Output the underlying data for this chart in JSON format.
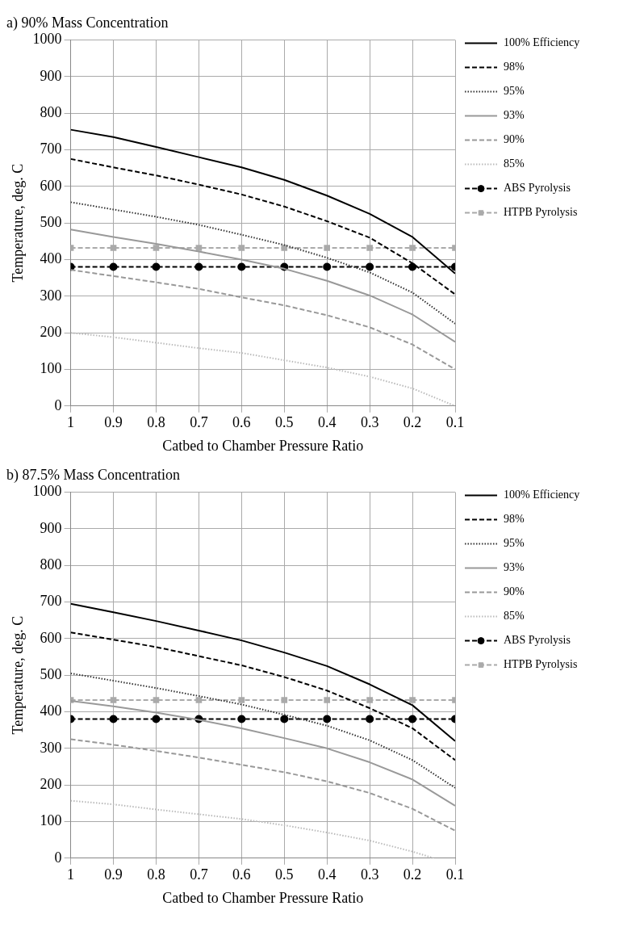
{
  "chart_data": [
    {
      "type": "line",
      "title": "a) 90% Mass Concentration",
      "xlabel": "Catbed to Chamber Pressure Ratio",
      "ylabel": "Temperature, deg. C",
      "x": [
        1,
        0.9,
        0.8,
        0.7,
        0.6,
        0.5,
        0.4,
        0.3,
        0.2,
        0.1
      ],
      "series": [
        {
          "name": "100% Efficiency",
          "color": "#000000",
          "line_style": "solid",
          "marker": "none",
          "values": [
            755,
            735,
            708,
            680,
            652,
            618,
            575,
            525,
            462,
            362
          ]
        },
        {
          "name": "98%",
          "color": "#000000",
          "line_style": "dashed",
          "marker": "none",
          "values": [
            675,
            652,
            630,
            605,
            578,
            545,
            505,
            460,
            390,
            305
          ]
        },
        {
          "name": "95%",
          "color": "#333333",
          "line_style": "dotted",
          "marker": "none",
          "values": [
            557,
            537,
            517,
            495,
            468,
            440,
            405,
            365,
            310,
            225
          ]
        },
        {
          "name": "93%",
          "color": "#999999",
          "line_style": "solid",
          "marker": "none",
          "values": [
            482,
            462,
            443,
            422,
            400,
            375,
            342,
            302,
            250,
            175
          ]
        },
        {
          "name": "90%",
          "color": "#999999",
          "line_style": "dashed",
          "marker": "none",
          "values": [
            372,
            355,
            338,
            320,
            297,
            275,
            248,
            215,
            168,
            100
          ]
        },
        {
          "name": "85%",
          "color": "#bbbbbb",
          "line_style": "dotted",
          "marker": "none",
          "values": [
            200,
            188,
            173,
            158,
            145,
            125,
            105,
            80,
            48,
            0
          ]
        },
        {
          "name": "ABS Pyrolysis",
          "color": "#000000",
          "line_style": "dashed",
          "marker": "circle",
          "values": [
            380,
            380,
            380,
            380,
            380,
            380,
            380,
            380,
            380,
            380
          ]
        },
        {
          "name": "HTPB Pyrolysis",
          "color": "#aaaaaa",
          "line_style": "dashed",
          "marker": "square",
          "values": [
            432,
            432,
            432,
            432,
            432,
            432,
            432,
            432,
            432,
            432
          ]
        }
      ],
      "xlim": [
        1,
        0.1
      ],
      "xticks": [
        1,
        0.9,
        0.8,
        0.7,
        0.6,
        0.5,
        0.4,
        0.3,
        0.2,
        0.1
      ],
      "ylim": [
        0,
        1000
      ],
      "yticks": [
        0,
        100,
        200,
        300,
        400,
        500,
        600,
        700,
        800,
        900,
        1000
      ],
      "grid": true,
      "legend": "right"
    },
    {
      "type": "line",
      "title": "b) 87.5% Mass Concentration",
      "xlabel": "Catbed to Chamber Pressure Ratio",
      "ylabel": "Temperature, deg. C",
      "x": [
        1,
        0.9,
        0.8,
        0.7,
        0.6,
        0.5,
        0.4,
        0.3,
        0.2,
        0.1
      ],
      "series": [
        {
          "name": "100% Efficiency",
          "color": "#000000",
          "line_style": "solid",
          "marker": "none",
          "values": [
            695,
            672,
            648,
            622,
            595,
            562,
            525,
            475,
            418,
            320
          ]
        },
        {
          "name": "98%",
          "color": "#000000",
          "line_style": "dashed",
          "marker": "none",
          "values": [
            617,
            597,
            577,
            552,
            527,
            495,
            458,
            410,
            355,
            268
          ]
        },
        {
          "name": "95%",
          "color": "#333333",
          "line_style": "dotted",
          "marker": "none",
          "values": [
            505,
            485,
            465,
            443,
            420,
            392,
            362,
            322,
            268,
            192
          ]
        },
        {
          "name": "93%",
          "color": "#999999",
          "line_style": "solid",
          "marker": "none",
          "values": [
            430,
            415,
            398,
            378,
            355,
            328,
            300,
            262,
            215,
            143
          ]
        },
        {
          "name": "90%",
          "color": "#999999",
          "line_style": "dashed",
          "marker": "none",
          "values": [
            325,
            310,
            293,
            275,
            255,
            235,
            210,
            178,
            135,
            75
          ]
        },
        {
          "name": "85%",
          "color": "#bbbbbb",
          "line_style": "dotted",
          "marker": "none",
          "x": [
            1,
            0.9,
            0.8,
            0.7,
            0.6,
            0.5,
            0.4,
            0.3,
            0.2,
            0.15
          ],
          "values": [
            157,
            147,
            133,
            120,
            107,
            90,
            70,
            48,
            18,
            0
          ]
        },
        {
          "name": "ABS Pyrolysis",
          "color": "#000000",
          "line_style": "dashed",
          "marker": "circle",
          "values": [
            380,
            380,
            380,
            380,
            380,
            380,
            380,
            380,
            380,
            380
          ]
        },
        {
          "name": "HTPB Pyrolysis",
          "color": "#aaaaaa",
          "line_style": "dashed",
          "marker": "square",
          "values": [
            432,
            432,
            432,
            432,
            432,
            432,
            432,
            432,
            432,
            432
          ]
        }
      ],
      "xlim": [
        1,
        0.1
      ],
      "xticks": [
        1,
        0.9,
        0.8,
        0.7,
        0.6,
        0.5,
        0.4,
        0.3,
        0.2,
        0.1
      ],
      "ylim": [
        0,
        1000
      ],
      "yticks": [
        0,
        100,
        200,
        300,
        400,
        500,
        600,
        700,
        800,
        900,
        1000
      ],
      "grid": true,
      "legend": "right"
    }
  ]
}
